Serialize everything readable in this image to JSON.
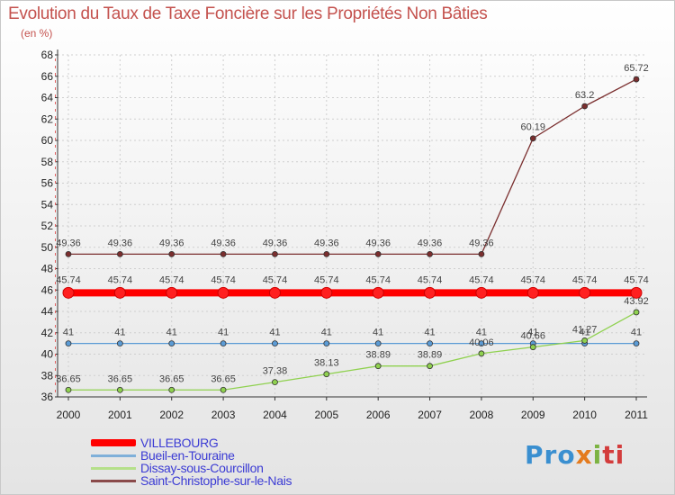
{
  "chart_data": {
    "type": "line",
    "title": "Evolution du Taux de Taxe Foncière sur les Propriétés Non Bâties",
    "ylabel": "(en %)",
    "xlabel": "",
    "ylim": [
      36,
      68
    ],
    "y_ticks": [
      36,
      38,
      40,
      42,
      44,
      46,
      48,
      50,
      52,
      54,
      56,
      58,
      60,
      62,
      64,
      66,
      68
    ],
    "categories": [
      "2000",
      "2001",
      "2002",
      "2003",
      "2004",
      "2005",
      "2006",
      "2007",
      "2008",
      "2009",
      "2010",
      "2011"
    ],
    "grid": true,
    "series": [
      {
        "name": "VILLEBOURG",
        "color": "#ff0000",
        "values": [
          45.74,
          45.74,
          45.74,
          45.74,
          45.74,
          45.74,
          45.74,
          45.74,
          45.74,
          45.74,
          45.74,
          45.74
        ],
        "labels": [
          "45.74",
          "45.74",
          "45.74",
          "45.74",
          "45.74",
          "45.74",
          "45.74",
          "45.74",
          "45.74",
          "45.74",
          "45.74",
          "45.74"
        ]
      },
      {
        "name": "Bueil-en-Touraine",
        "color": "#5b9bd5",
        "values": [
          41,
          41,
          41,
          41,
          41,
          41,
          41,
          41,
          41,
          41,
          41,
          41
        ],
        "labels": [
          "41",
          "41",
          "41",
          "41",
          "41",
          "41",
          "41",
          "41",
          "41",
          "41",
          "41",
          "41"
        ]
      },
      {
        "name": "Dissay-sous-Courcillon",
        "color": "#8fd14f",
        "values": [
          36.65,
          36.65,
          36.65,
          36.65,
          37.38,
          38.13,
          38.89,
          38.89,
          40.06,
          40.66,
          41.27,
          43.92
        ],
        "labels": [
          "36.65",
          "36.65",
          "36.65",
          "36.65",
          "37.38",
          "38.13",
          "38.89",
          "38.89",
          "40.06",
          "40.66",
          "41.27",
          "43.92"
        ]
      },
      {
        "name": "Saint-Christophe-sur-le-Nais",
        "color": "#7a2e2e",
        "values": [
          49.36,
          49.36,
          49.36,
          49.36,
          49.36,
          49.36,
          49.36,
          49.36,
          49.36,
          60.19,
          63.2,
          65.72
        ],
        "labels": [
          "49.36",
          "49.36",
          "49.36",
          "49.36",
          "49.36",
          "49.36",
          "49.36",
          "49.36",
          "49.36",
          "60.19",
          "63.2",
          "65.72"
        ]
      }
    ]
  },
  "legend": {
    "items": [
      {
        "label": "VILLEBOURG",
        "color": "#ff0000"
      },
      {
        "label": "Bueil-en-Touraine",
        "color": "#7fb0d9"
      },
      {
        "label": "Dissay-sous-Courcillon",
        "color": "#b5e08a"
      },
      {
        "label": "Saint-Christophe-sur-le-Nais",
        "color": "#8a4a4a"
      }
    ]
  },
  "logo": {
    "p1": "Pro",
    "p2": "x",
    "p3": "i",
    "p4": "ti"
  }
}
